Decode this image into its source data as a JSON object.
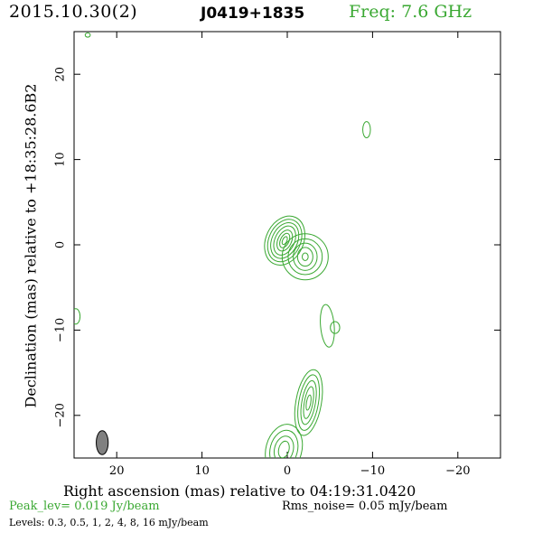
{
  "header": {
    "date": "2015.10.30(2)",
    "source": "J0419+1835",
    "frequency": "Freq: 7.6 GHz"
  },
  "footer": {
    "peak": "Peak_lev=  0.019 Jy/beam",
    "rms": "Rms_noise= 0.05 mJy/beam",
    "levels": "Levels: 0.3, 0.5,   1,   2,   4,   8,   16 mJy/beam"
  },
  "colors": {
    "contour": "#3aa832",
    "beam": "#808080",
    "axis": "#000000"
  },
  "chart_data": {
    "type": "contour",
    "title": "J0419+1835",
    "xlabel": "Right ascension (mas) relative to 04:19:31.0420",
    "ylabel": "Declination (mas) relative to +18:35:28.6B2",
    "xlim": [
      25,
      -25
    ],
    "ylim": [
      -25,
      25
    ],
    "xticks": [
      20,
      10,
      0,
      -10,
      -20
    ],
    "yticks": [
      20,
      10,
      0,
      -10,
      -20
    ],
    "xtick_labels": [
      "20",
      "10",
      "0",
      "−10",
      "−20"
    ],
    "ytick_labels": [
      "20",
      "10",
      "0",
      "−10",
      "−20"
    ],
    "contour_levels_mJy": [
      0.3,
      0.5,
      1,
      2,
      4,
      8,
      16
    ],
    "components": [
      {
        "ra": 0.3,
        "dec": 0.5,
        "rings": [
          [
            2.2,
            3.0,
            25
          ],
          [
            1.85,
            2.6,
            25
          ],
          [
            1.5,
            2.2,
            25
          ],
          [
            1.15,
            1.8,
            25
          ],
          [
            0.8,
            1.3,
            25
          ],
          [
            0.5,
            0.9,
            25
          ],
          [
            0.25,
            0.5,
            25
          ]
        ]
      },
      {
        "ra": -2.1,
        "dec": -1.4,
        "rings": [
          [
            2.7,
            2.7,
            0
          ],
          [
            2.0,
            2.1,
            0
          ],
          [
            1.4,
            1.6,
            0
          ],
          [
            0.9,
            1.1,
            0
          ],
          [
            0.35,
            0.45,
            0
          ]
        ]
      },
      {
        "ra": -2.5,
        "dec": -18.5,
        "rings": [
          [
            1.5,
            3.9,
            10
          ],
          [
            1.15,
            3.3,
            10
          ],
          [
            0.8,
            2.6,
            10
          ],
          [
            0.5,
            1.9,
            10
          ],
          [
            0.25,
            0.9,
            10
          ]
        ]
      },
      {
        "ra": 0.4,
        "dec": -24.0,
        "rings": [
          [
            2.1,
            3.0,
            15
          ],
          [
            1.6,
            2.3,
            15
          ],
          [
            1.1,
            1.6,
            15
          ],
          [
            0.6,
            1.0,
            15
          ]
        ]
      },
      {
        "ra": -4.7,
        "dec": -9.5,
        "rings": [
          [
            0.8,
            2.5,
            -5
          ]
        ]
      },
      {
        "ra": -5.6,
        "dec": -9.7,
        "rings": [
          [
            0.55,
            0.7,
            0
          ]
        ]
      },
      {
        "ra": -9.3,
        "dec": 13.5,
        "rings": [
          [
            0.45,
            0.95,
            0
          ]
        ]
      },
      {
        "ra": 24.8,
        "dec": -8.4,
        "rings": [
          [
            0.5,
            0.9,
            0
          ]
        ]
      },
      {
        "ra": 23.4,
        "dec": 24.6,
        "rings": [
          [
            0.3,
            0.25,
            0
          ]
        ]
      }
    ],
    "beam": {
      "ra": 21.7,
      "dec": -23.2,
      "major": 1.4,
      "minor": 0.7,
      "pa": 0
    }
  }
}
